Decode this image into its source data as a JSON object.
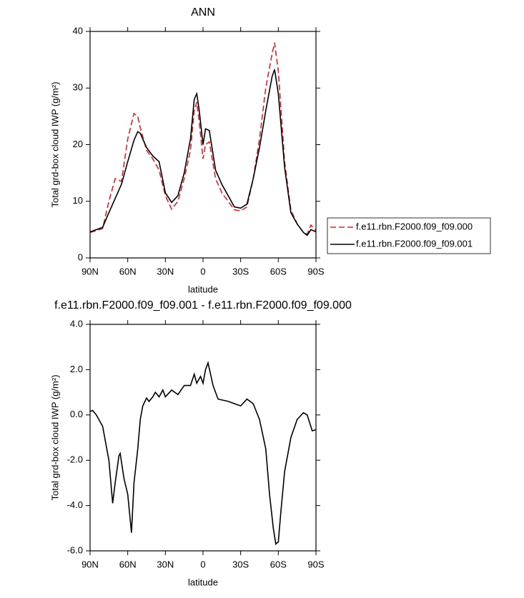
{
  "chart_data": [
    {
      "type": "line",
      "title": "ANN",
      "xlabel": "latitude",
      "ylabel": "Total grd-box cloud IWP (g/m²)",
      "x": [
        90,
        85,
        80,
        75,
        70,
        65,
        60,
        55,
        52,
        50,
        45,
        40,
        35,
        30,
        25,
        20,
        15,
        10,
        7,
        5,
        3,
        0,
        -2,
        -5,
        -10,
        -15,
        -20,
        -25,
        -30,
        -35,
        -40,
        -45,
        -50,
        -55,
        -57,
        -60,
        -65,
        -70,
        -75,
        -80,
        -83,
        -86,
        -90
      ],
      "xlim": [
        90,
        -90
      ],
      "xticks": [
        {
          "value": 90,
          "label": "90N"
        },
        {
          "value": 60,
          "label": "60N"
        },
        {
          "value": 30,
          "label": "30N"
        },
        0,
        {
          "value": -30,
          "label": "30S"
        },
        {
          "value": -60,
          "label": "60S"
        },
        {
          "value": -90,
          "label": "90S"
        }
      ],
      "ylim": [
        0,
        40
      ],
      "yticks": [
        0,
        10,
        20,
        30,
        40
      ],
      "legend": "outside-right",
      "series": [
        {
          "name": "f.e11.rbn.F2000.f09_f09.000",
          "color": "#e0202a",
          "style": "dashed",
          "values": [
            4.5,
            4.8,
            5.2,
            10,
            14,
            13.5,
            21,
            25.5,
            25,
            23,
            19,
            17.5,
            15.5,
            11,
            8.6,
            10,
            14,
            19,
            26,
            27.5,
            24,
            17.5,
            20,
            20.5,
            14,
            11.5,
            10,
            8.5,
            8.3,
            9,
            14,
            21,
            30,
            36,
            38,
            33,
            17,
            8.5,
            6,
            4.5,
            4.2,
            5.8,
            4.8
          ]
        },
        {
          "name": "f.e11.rbn.F2000.f09_f09.001",
          "color": "#000000",
          "style": "solid",
          "values": [
            4.6,
            5.0,
            5.4,
            8,
            10.5,
            13,
            17,
            20.8,
            22.3,
            22,
            19.5,
            18,
            17,
            11.5,
            9.8,
            11,
            15,
            21,
            28,
            29,
            26,
            20,
            22.8,
            22.5,
            15.5,
            13,
            11,
            9,
            8.8,
            9.5,
            14,
            19.5,
            26,
            32,
            33.3,
            29,
            16,
            8,
            6,
            4.5,
            4,
            5,
            4.6
          ]
        }
      ]
    },
    {
      "type": "line",
      "title": "f.e11.rbn.F2000.f09_f09.001 - f.e11.rbn.F2000.f09_f09.000",
      "xlabel": "latitude",
      "ylabel": "Total grd-box cloud IWP (g/m²)",
      "x": [
        90,
        88,
        85,
        80,
        75,
        72,
        70,
        67,
        66,
        63,
        60,
        57,
        55,
        52,
        50,
        48,
        45,
        43,
        40,
        38,
        35,
        32,
        30,
        25,
        20,
        15,
        10,
        7,
        5,
        2,
        0,
        -2,
        -4,
        -6,
        -8,
        -12,
        -20,
        -25,
        -30,
        -35,
        -40,
        -45,
        -50,
        -53,
        -56,
        -58,
        -60,
        -62,
        -65,
        -70,
        -75,
        -80,
        -83,
        -87,
        -90
      ],
      "xlim": [
        90,
        -90
      ],
      "xticks": [
        {
          "value": 90,
          "label": "90N"
        },
        {
          "value": 60,
          "label": "60N"
        },
        {
          "value": 30,
          "label": "30N"
        },
        0,
        {
          "value": -30,
          "label": "30S"
        },
        {
          "value": -60,
          "label": "60S"
        },
        {
          "value": -90,
          "label": "90S"
        }
      ],
      "ylim": [
        -6,
        4
      ],
      "yticks": [
        {
          "value": -6,
          "label": "-6.0"
        },
        {
          "value": -4,
          "label": "-4.0"
        },
        {
          "value": -2,
          "label": "-2.0"
        },
        {
          "value": 0,
          "label": "0.0"
        },
        {
          "value": 2,
          "label": "2.0"
        },
        {
          "value": 4,
          "label": "4.0"
        }
      ],
      "color": "#000000",
      "values": [
        0.15,
        0.2,
        0,
        -0.5,
        -2,
        -3.9,
        -3,
        -1.8,
        -1.7,
        -2.8,
        -3.5,
        -5.2,
        -3,
        -1.5,
        -0.2,
        0.4,
        0.75,
        0.6,
        0.8,
        1.0,
        0.8,
        1.1,
        0.8,
        1.1,
        0.9,
        1.3,
        1.3,
        1.8,
        1.4,
        1.7,
        1.4,
        2.0,
        2.3,
        1.8,
        1.3,
        0.7,
        0.6,
        0.5,
        0.4,
        0.7,
        0.5,
        -0.2,
        -1.5,
        -3.5,
        -5.0,
        -5.7,
        -5.6,
        -4.3,
        -2.5,
        -1,
        -0.2,
        0.1,
        0,
        -0.7,
        -0.65
      ]
    }
  ]
}
